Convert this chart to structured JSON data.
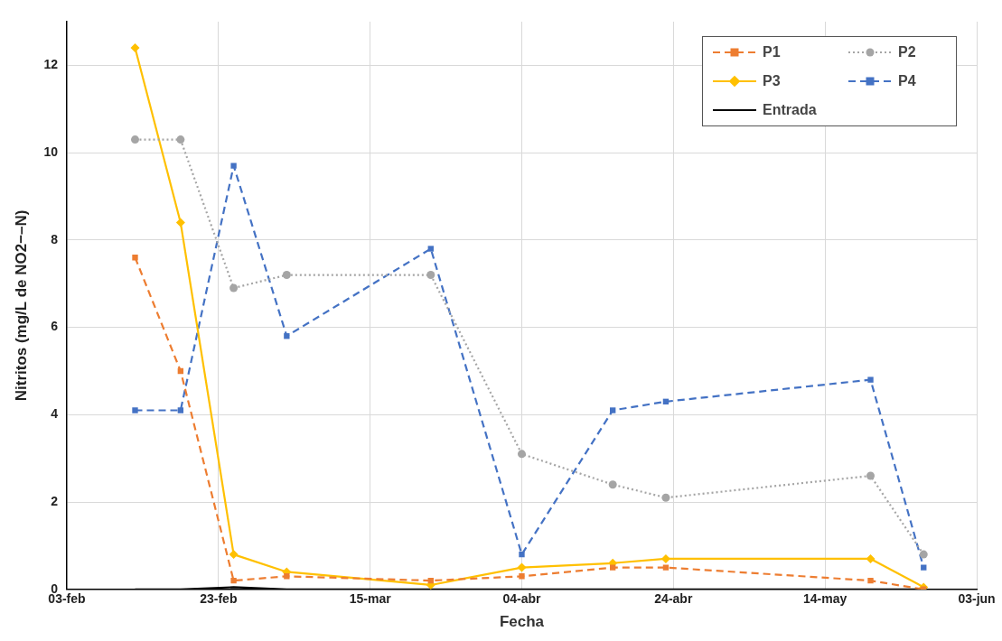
{
  "chart_data": {
    "type": "line",
    "xlabel": "Fecha",
    "ylabel": "Nitritos (mg/L de NO2−–N)",
    "xlim": [
      "--02-03",
      "--06-03"
    ],
    "xticks": [
      {
        "value": "--02-03",
        "label": "03-feb"
      },
      {
        "value": "--02-23",
        "label": "23-feb"
      },
      {
        "value": "--03-15",
        "label": "15-mar"
      },
      {
        "value": "--04-04",
        "label": "04-abr"
      },
      {
        "value": "--04-24",
        "label": "24-abr"
      },
      {
        "value": "--05-14",
        "label": "14-may"
      },
      {
        "value": "--06-03",
        "label": "03-jun"
      }
    ],
    "ylim": [
      0,
      13
    ],
    "yticks": [
      0,
      2,
      4,
      6,
      8,
      10,
      12
    ],
    "x": [
      "--02-12",
      "--02-18",
      "--02-25",
      "--03-04",
      "--03-23",
      "--04-04",
      "--04-16",
      "--04-23",
      "--05-20",
      "--05-27"
    ],
    "series": [
      {
        "name": "P1",
        "color": "#ed7d31",
        "marker": "square",
        "line_style": "dashed",
        "values": [
          7.6,
          5.0,
          0.2,
          0.3,
          0.2,
          0.3,
          0.5,
          0.5,
          0.2,
          0.0
        ]
      },
      {
        "name": "P2",
        "color": "#a5a5a5",
        "marker": "circle",
        "line_style": "dotted",
        "values": [
          10.3,
          10.3,
          6.9,
          7.2,
          7.2,
          3.1,
          2.4,
          2.1,
          2.6,
          0.8
        ]
      },
      {
        "name": "P3",
        "color": "#ffc000",
        "marker": "diamond",
        "line_style": "solid",
        "values": [
          12.4,
          8.4,
          0.8,
          0.4,
          0.1,
          0.5,
          0.6,
          0.7,
          0.7,
          0.05
        ]
      },
      {
        "name": "P4",
        "color": "#4472c4",
        "marker": "square",
        "line_style": "dashed",
        "values": [
          4.1,
          4.1,
          9.7,
          5.8,
          7.8,
          0.8,
          4.1,
          4.3,
          4.8,
          0.5
        ]
      },
      {
        "name": "Entrada",
        "color": "#000000",
        "marker": "none",
        "line_style": "solid",
        "values": [
          0,
          0,
          0.05,
          0,
          0,
          0,
          0,
          0,
          0,
          0
        ]
      }
    ],
    "grid": true,
    "legend": "top right"
  }
}
